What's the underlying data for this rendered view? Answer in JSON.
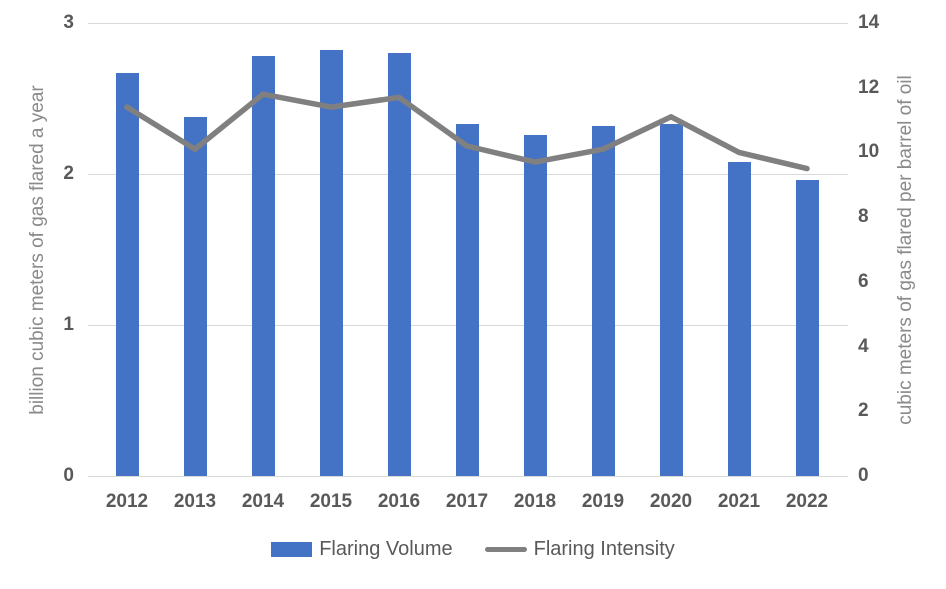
{
  "chart_data": {
    "type": "bar+line combo",
    "categories": [
      "2012",
      "2013",
      "2014",
      "2015",
      "2016",
      "2017",
      "2018",
      "2019",
      "2020",
      "2021",
      "2022"
    ],
    "series": [
      {
        "name": "Flaring Volume",
        "type": "bar",
        "axis": "left",
        "color": "#4472C4",
        "values": [
          2.67,
          2.38,
          2.78,
          2.82,
          2.8,
          2.33,
          2.26,
          2.32,
          2.33,
          2.08,
          1.96
        ]
      },
      {
        "name": "Flaring Intensity",
        "type": "line",
        "axis": "right",
        "color": "#808080",
        "values": [
          11.4,
          10.1,
          11.8,
          11.4,
          11.7,
          10.2,
          9.7,
          10.1,
          11.1,
          10.0,
          9.5
        ]
      }
    ],
    "left_axis": {
      "label": "billion cubic meters of gas flared a year",
      "min": 0,
      "max": 3,
      "ticks": [
        0,
        1,
        2,
        3
      ]
    },
    "right_axis": {
      "label": "cubic meters of gas flared per barrel of oil",
      "min": 0,
      "max": 14,
      "ticks": [
        0,
        2,
        4,
        6,
        8,
        10,
        12,
        14
      ]
    },
    "grid": true,
    "gridline_color": "#D9D9D9",
    "legend_position": "bottom",
    "text_color": "#595959",
    "axis_title_color": "#8A8A8A",
    "background": "#FFFFFF"
  }
}
